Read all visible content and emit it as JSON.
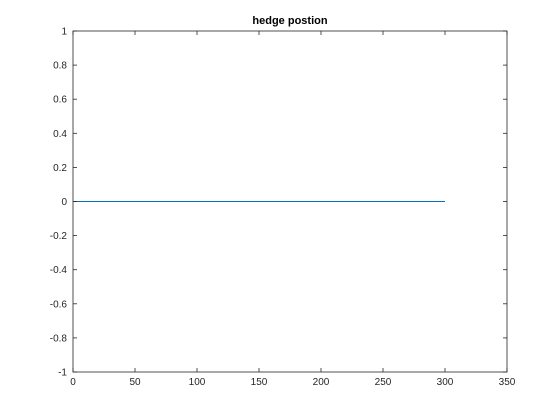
{
  "chart_data": {
    "type": "line",
    "title": "hedge postion",
    "xlabel": "",
    "ylabel": "",
    "xlim": [
      0,
      350
    ],
    "ylim": [
      -1,
      1
    ],
    "xticks": [
      0,
      50,
      100,
      150,
      200,
      250,
      300,
      350
    ],
    "yticks": [
      -1,
      -0.8,
      -0.6,
      -0.4,
      -0.2,
      0,
      0.2,
      0.4,
      0.6,
      0.8,
      1
    ],
    "grid": false,
    "legend": "none",
    "series": [
      {
        "color": "#0072bd",
        "x": [
          0,
          300
        ],
        "y": [
          0,
          0
        ]
      }
    ]
  },
  "colors": {
    "axis": "#262626",
    "background": "#ffffff"
  }
}
